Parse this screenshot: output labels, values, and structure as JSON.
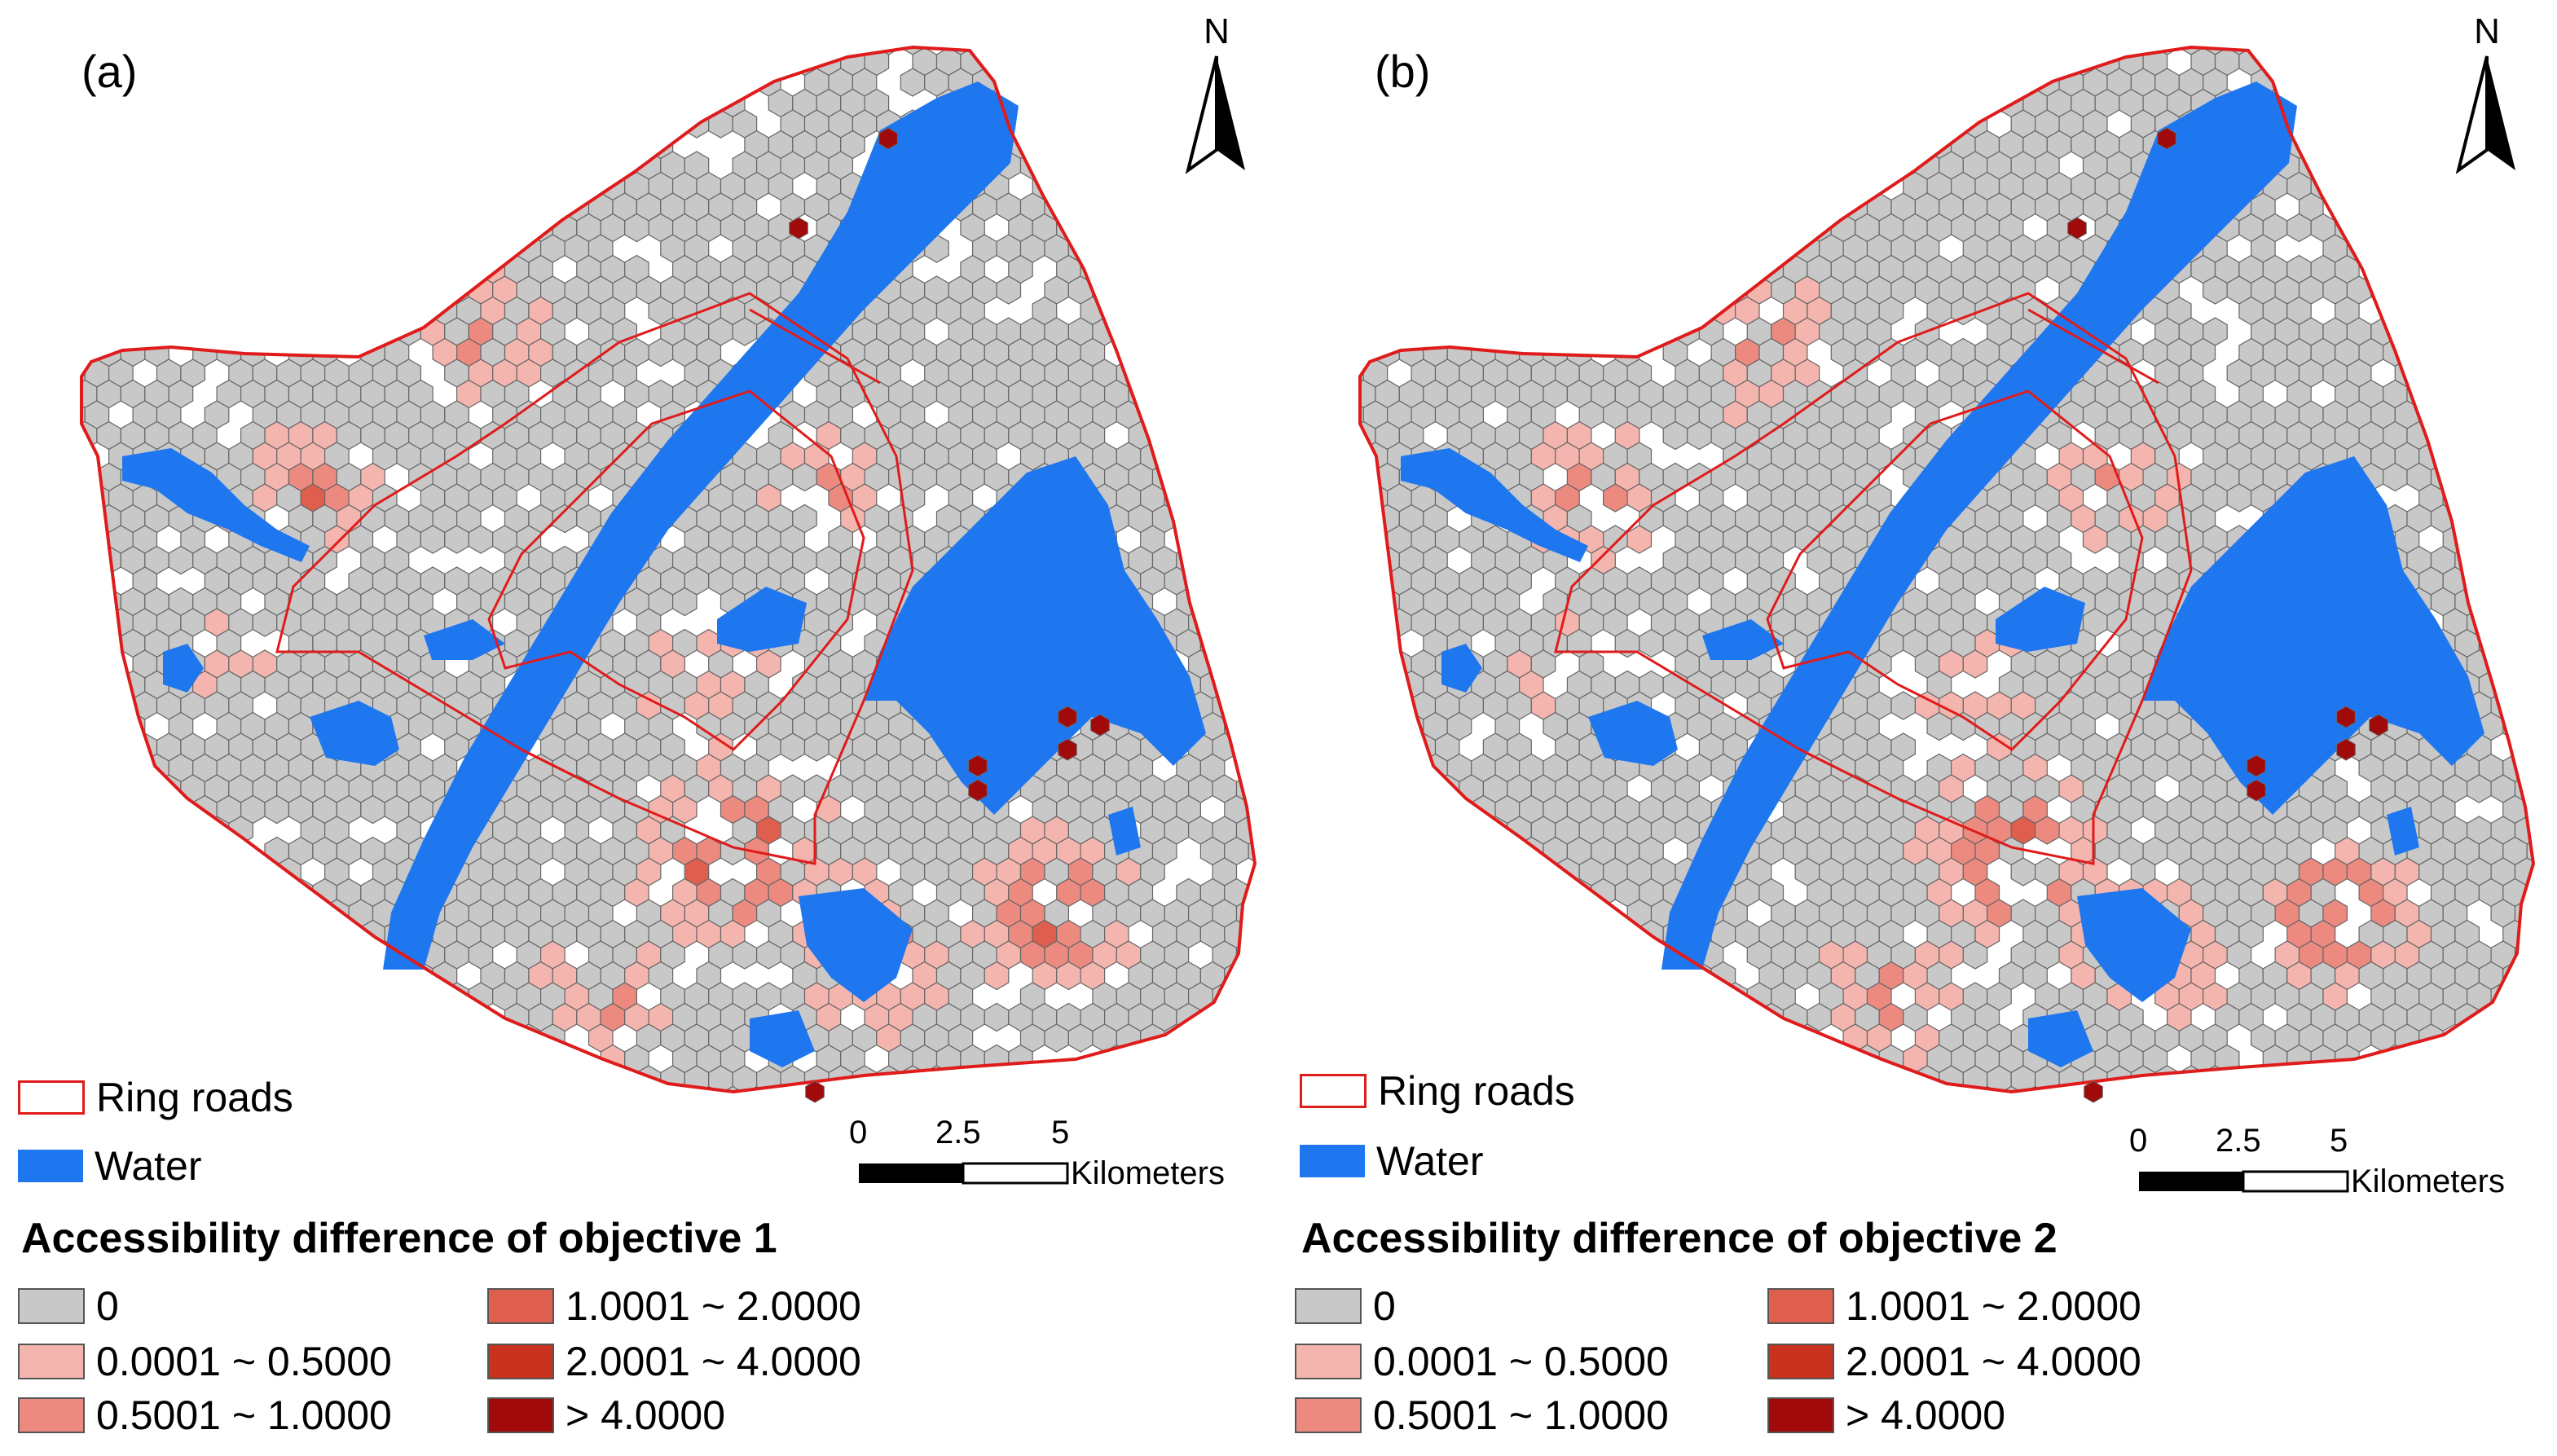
{
  "panels": [
    {
      "label": "(a)",
      "legend_title": "Accessibility difference of objective 1"
    },
    {
      "label": "(b)",
      "legend_title": "Accessibility difference of objective 2"
    }
  ],
  "north_label": "N",
  "legend": {
    "ring_roads": "Ring roads",
    "water": "Water"
  },
  "scale": {
    "ticks": [
      "0",
      "2.5",
      "5"
    ],
    "units": "Kilometers"
  },
  "classes": [
    {
      "label": "0",
      "color": "#c8c8c8"
    },
    {
      "label": "0.0001 ~ 0.5000",
      "color": "#f4b5ae"
    },
    {
      "label": "0.5001 ~ 1.0000",
      "color": "#ec8a80"
    },
    {
      "label": "1.0001 ~ 2.0000",
      "color": "#df5f4e"
    },
    {
      "label": "2.0001 ~ 4.0000",
      "color": "#c8321f"
    },
    {
      "label": "> 4.0000",
      "color": "#a10a0a"
    }
  ],
  "colors": {
    "boundary": "#e01b1b",
    "water": "#1f77f0",
    "hex_stroke": "#666666"
  }
}
